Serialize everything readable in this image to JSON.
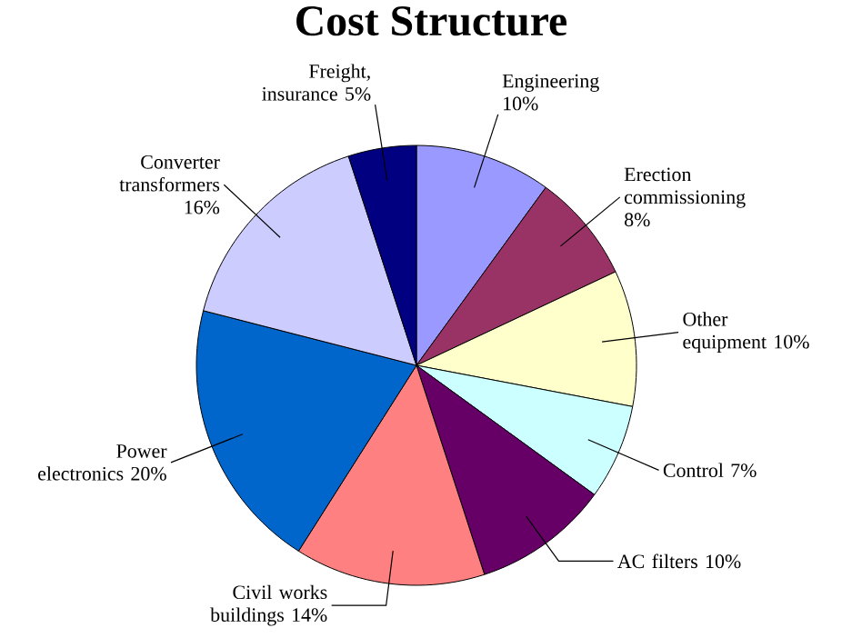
{
  "chart_data": {
    "type": "pie",
    "title": "Cost Structure",
    "categories": [
      "Engineering",
      "Erection commissioning",
      "Other equipment",
      "Control",
      "AC filters",
      "Civil works buildings",
      "Power electronics",
      "Converter transformers",
      "Freight, insurance"
    ],
    "values": [
      10,
      8,
      10,
      7,
      10,
      14,
      20,
      16,
      5
    ],
    "value_labels": [
      "10%",
      "8%",
      "10%",
      "7%",
      "10%",
      "14%",
      "20%",
      "16%",
      "5%"
    ],
    "colors": [
      "#9999ff",
      "#993366",
      "#ffffcc",
      "#ccffff",
      "#660066",
      "#ff8080",
      "#0066cc",
      "#ccccff",
      "#000080"
    ]
  }
}
